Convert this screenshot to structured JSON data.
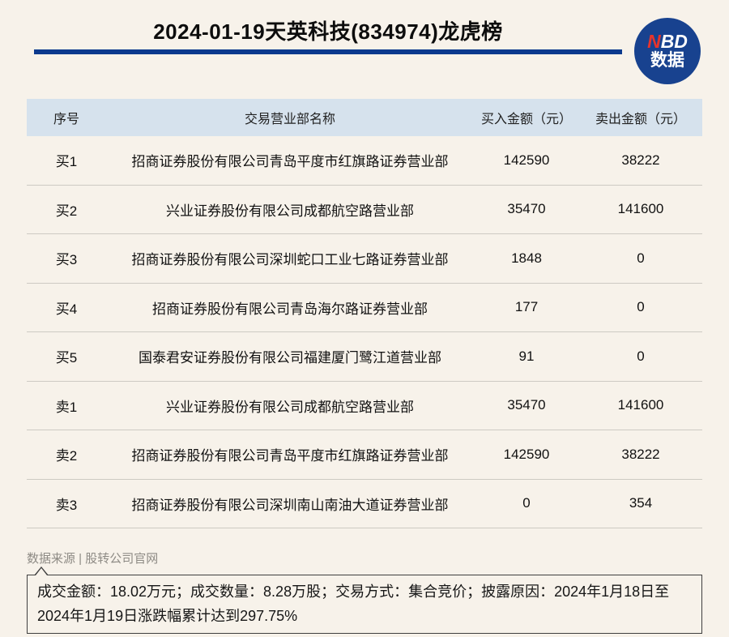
{
  "header": {
    "title": "2024-01-19天英科技(834974)龙虎榜",
    "logo": {
      "n": "N",
      "bd": "BD",
      "subtitle": "数据"
    }
  },
  "chart_data": {
    "type": "table",
    "title": "2024-01-19天英科技(834974)龙虎榜",
    "columns": [
      "序号",
      "交易营业部名称",
      "买入金额（元）",
      "卖出金额（元）"
    ],
    "rows": [
      [
        "买1",
        "招商证券股份有限公司青岛平度市红旗路证券营业部",
        142590,
        38222
      ],
      [
        "买2",
        "兴业证券股份有限公司成都航空路营业部",
        35470,
        141600
      ],
      [
        "买3",
        "招商证券股份有限公司深圳蛇口工业七路证券营业部",
        1848,
        0
      ],
      [
        "买4",
        "招商证券股份有限公司青岛海尔路证券营业部",
        177,
        0
      ],
      [
        "买5",
        "国泰君安证券股份有限公司福建厦门鹭江道营业部",
        91,
        0
      ],
      [
        "卖1",
        "兴业证券股份有限公司成都航空路营业部",
        35470,
        141600
      ],
      [
        "卖2",
        "招商证券股份有限公司青岛平度市红旗路证券营业部",
        142590,
        38222
      ],
      [
        "卖3",
        "招商证券股份有限公司深圳南山南油大道证券营业部",
        0,
        354
      ]
    ],
    "layout_hints": {
      "header_background": "#d6e2ed",
      "grid": "horizontal-separators-only"
    }
  },
  "footer": {
    "source": "数据来源 | 股转公司官网",
    "note": "成交金额：18.02万元；成交数量：8.28万股；交易方式：集合竞价；披露原因：2024年1月18日至2024年1月19日涨跌幅累计达到297.75%"
  },
  "colors": {
    "page_background": "#f7f2ea",
    "title_underline_navy": "#0c3a8e",
    "logo_circle_blue": "#18428f",
    "logo_n_red": "#e7342c",
    "table_header_bg": "#d6e2ed",
    "row_separator": "#cdcac3",
    "source_text_gray": "#8e8b85",
    "note_border": "#3f3f3f"
  }
}
